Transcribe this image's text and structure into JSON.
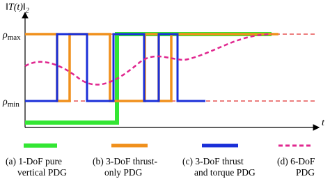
{
  "y_axis_label": {
    "main": "‖T(t)‖",
    "sub": "2"
  },
  "x_axis_label": "t",
  "levels": [
    {
      "symbol": "ρ",
      "sub": "max"
    },
    {
      "symbol": "ρ",
      "sub": "min"
    }
  ],
  "legend": [
    {
      "lines": [
        "(a) 1-DoF pure",
        "vertical PDG"
      ]
    },
    {
      "lines": [
        "(b) 3-DoF thrust-",
        "only PDG"
      ]
    },
    {
      "lines": [
        "(c) 3-DoF thrust",
        "and torque PDG"
      ]
    },
    {
      "lines": [
        "(d) 6-DoF",
        "PDG"
      ]
    }
  ]
}
